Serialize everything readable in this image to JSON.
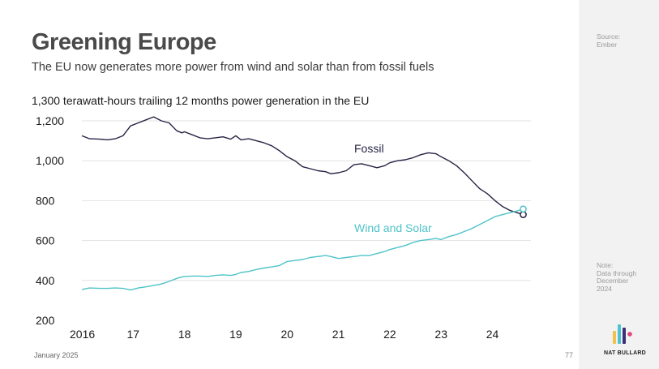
{
  "slide": {
    "title": "Greening Europe",
    "subtitle": "The EU now generates more power from wind and solar than from fossil fuels",
    "footer_date": "January 2025",
    "page_number": "77"
  },
  "sidebar": {
    "source_label": "Source:",
    "source_value": "Ember",
    "note_label": "Note:",
    "note_lines": [
      "Data through",
      "December",
      "2024"
    ],
    "brand": "NAT BULLARD",
    "logo_colors": [
      "#f2c14e",
      "#4fc3d1",
      "#3b2f7a",
      "#e0457b"
    ]
  },
  "chart_data": {
    "type": "line",
    "title": "1,300 terawatt-hours trailing 12 months power generation in the EU",
    "ylim": [
      200,
      1300
    ],
    "xlim": [
      2016,
      2024.75
    ],
    "y_ticks": [
      {
        "value": 200,
        "label": "200"
      },
      {
        "value": 400,
        "label": "400"
      },
      {
        "value": 600,
        "label": "600"
      },
      {
        "value": 800,
        "label": "800"
      },
      {
        "value": 1000,
        "label": "1,000"
      },
      {
        "value": 1200,
        "label": "1,200"
      }
    ],
    "x_ticks": [
      {
        "value": 2016,
        "label": "2016"
      },
      {
        "value": 2017,
        "label": "17"
      },
      {
        "value": 2018,
        "label": "18"
      },
      {
        "value": 2019,
        "label": "19"
      },
      {
        "value": 2020,
        "label": "20"
      },
      {
        "value": 2021,
        "label": "21"
      },
      {
        "value": 2022,
        "label": "22"
      },
      {
        "value": 2023,
        "label": "23"
      },
      {
        "value": 2024,
        "label": "24"
      }
    ],
    "grid": true,
    "series": [
      {
        "name": "Fossil",
        "color": "#262445",
        "x": [
          2016.0,
          2016.15,
          2016.35,
          2016.5,
          2016.65,
          2016.8,
          2016.95,
          2017.1,
          2017.25,
          2017.4,
          2017.55,
          2017.7,
          2017.85,
          2017.95,
          2018.0,
          2018.15,
          2018.3,
          2018.45,
          2018.6,
          2018.75,
          2018.9,
          2019.0,
          2019.1,
          2019.25,
          2019.4,
          2019.55,
          2019.7,
          2019.85,
          2020.0,
          2020.15,
          2020.3,
          2020.45,
          2020.6,
          2020.75,
          2020.85,
          2021.0,
          2021.15,
          2021.3,
          2021.45,
          2021.6,
          2021.75,
          2021.9,
          2022.0,
          2022.15,
          2022.3,
          2022.45,
          2022.6,
          2022.75,
          2022.9,
          2023.0,
          2023.15,
          2023.3,
          2023.45,
          2023.6,
          2023.75,
          2023.9,
          2024.05,
          2024.2,
          2024.35,
          2024.5,
          2024.6
        ],
        "values": [
          1125,
          1110,
          1108,
          1105,
          1110,
          1125,
          1175,
          1190,
          1205,
          1220,
          1200,
          1190,
          1150,
          1140,
          1145,
          1130,
          1115,
          1110,
          1115,
          1120,
          1108,
          1125,
          1105,
          1110,
          1100,
          1090,
          1075,
          1050,
          1020,
          1000,
          970,
          960,
          950,
          945,
          935,
          940,
          950,
          980,
          985,
          975,
          965,
          975,
          990,
          1000,
          1005,
          1015,
          1030,
          1040,
          1035,
          1020,
          1000,
          975,
          940,
          900,
          860,
          835,
          800,
          770,
          750,
          738,
          730
        ]
      },
      {
        "name": "Wind and Solar",
        "color": "#4fc3c8",
        "x": [
          2016.0,
          2016.15,
          2016.35,
          2016.5,
          2016.65,
          2016.8,
          2016.95,
          2017.1,
          2017.25,
          2017.4,
          2017.55,
          2017.7,
          2017.85,
          2017.95,
          2018.0,
          2018.15,
          2018.3,
          2018.45,
          2018.6,
          2018.75,
          2018.9,
          2019.0,
          2019.1,
          2019.25,
          2019.4,
          2019.55,
          2019.7,
          2019.85,
          2020.0,
          2020.15,
          2020.3,
          2020.45,
          2020.6,
          2020.75,
          2020.85,
          2021.0,
          2021.15,
          2021.3,
          2021.45,
          2021.6,
          2021.75,
          2021.9,
          2022.0,
          2022.15,
          2022.3,
          2022.45,
          2022.6,
          2022.75,
          2022.9,
          2023.0,
          2023.15,
          2023.3,
          2023.45,
          2023.6,
          2023.75,
          2023.9,
          2024.05,
          2024.2,
          2024.35,
          2024.5,
          2024.6
        ],
        "values": [
          355,
          362,
          360,
          360,
          362,
          360,
          352,
          362,
          368,
          375,
          382,
          395,
          410,
          418,
          420,
          422,
          422,
          420,
          425,
          428,
          425,
          430,
          440,
          445,
          455,
          462,
          468,
          475,
          495,
          500,
          505,
          515,
          520,
          525,
          520,
          510,
          515,
          520,
          525,
          525,
          535,
          545,
          555,
          565,
          575,
          590,
          600,
          605,
          610,
          605,
          620,
          630,
          645,
          660,
          680,
          700,
          720,
          730,
          740,
          750,
          758
        ]
      }
    ],
    "annotations": [
      {
        "text": "Fossil",
        "series": "Fossil"
      },
      {
        "text": "Wind and Solar",
        "series": "Wind and Solar"
      }
    ]
  }
}
